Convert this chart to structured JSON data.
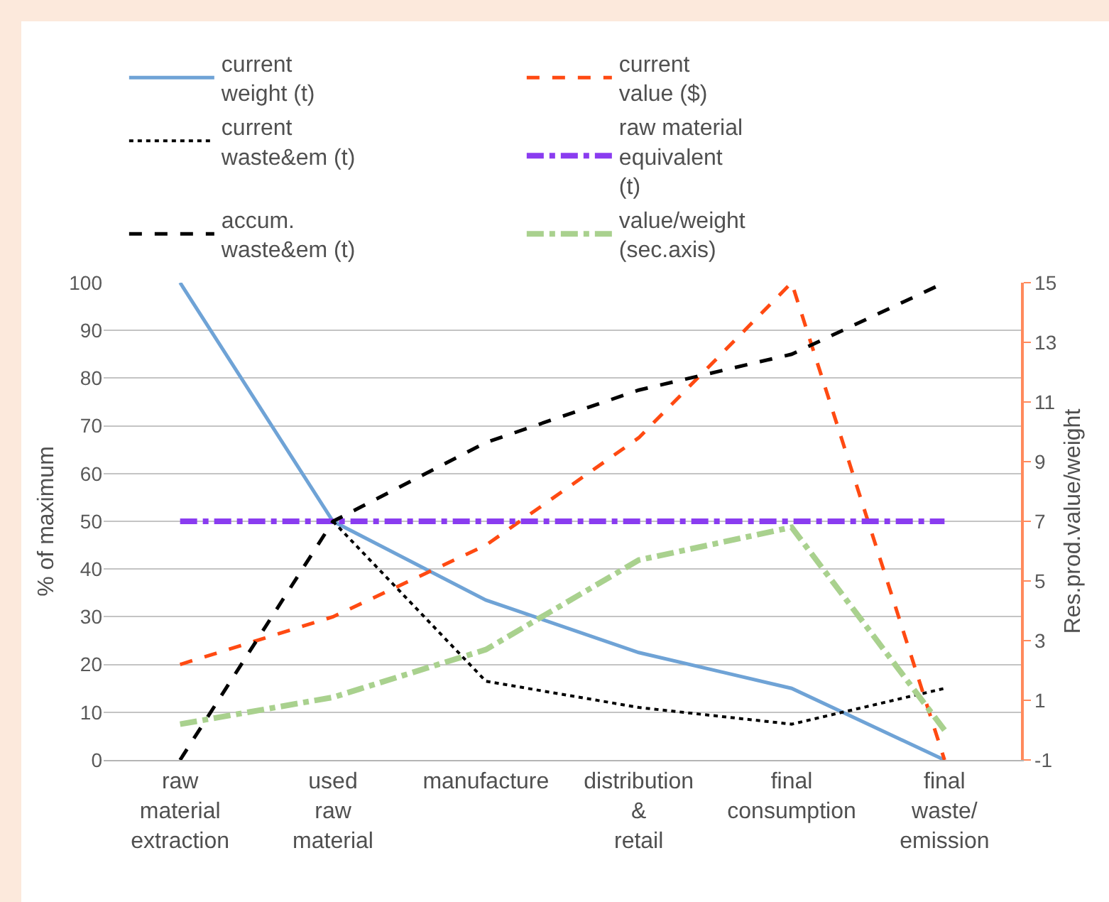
{
  "chart_data": {
    "type": "line",
    "categories": [
      "raw material extraction",
      "used raw material",
      "manufacture",
      "distribution & retail",
      "final consumption",
      "final waste/ emission"
    ],
    "series": [
      {
        "name": "current weight (t)",
        "color": "#6fa3d6",
        "line_style": "solid",
        "values": [
          100,
          50,
          33.5,
          22.5,
          15,
          0
        ]
      },
      {
        "name": "current value ($)",
        "color": "#ff4a12",
        "line_style": "dashed",
        "values": [
          20,
          30,
          45,
          67.5,
          100,
          0
        ]
      },
      {
        "name": "current waste&em (t)",
        "color": "#000000",
        "line_style": "dotted",
        "values": [
          null,
          50,
          16.5,
          11,
          7.5,
          15
        ]
      },
      {
        "name": "raw material equivalent (t)",
        "color": "#8a3cf0",
        "line_style": "dashdot",
        "values": [
          50,
          50,
          50,
          50,
          50,
          50
        ]
      },
      {
        "name": "accum. waste&em (t)",
        "color": "#000000",
        "line_style": "dashed",
        "values": [
          0,
          50,
          66.5,
          77.5,
          85,
          100
        ]
      },
      {
        "name": "value/weight (sec.axis)",
        "color": "#a9d18e",
        "line_style": "dashdot",
        "axis": "y2",
        "values": [
          0.2,
          1.1,
          2.7,
          5.7,
          6.8,
          0
        ]
      }
    ],
    "ylabel": "% of maximum",
    "y2label": "Res.prod.value/weight",
    "ylim": [
      0,
      100
    ],
    "yticks": [
      0,
      10,
      20,
      30,
      40,
      50,
      60,
      70,
      80,
      90,
      100
    ],
    "y2lim": [
      -1,
      15
    ],
    "y2ticks": [
      -1,
      1,
      3,
      5,
      7,
      9,
      11,
      13,
      15
    ],
    "grid": "y",
    "legend": "top"
  }
}
